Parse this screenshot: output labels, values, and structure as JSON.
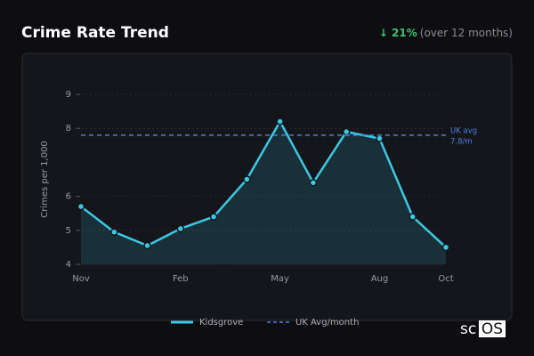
{
  "header": {
    "title": "Crime Rate Trend",
    "change": "↓ 21%",
    "change_note": "(over 12 months)"
  },
  "chart_data": {
    "type": "line",
    "y_label": "Crimes per 1,000",
    "categories": [
      "Nov",
      null,
      null,
      "Feb",
      null,
      null,
      "May",
      null,
      null,
      "Aug",
      null,
      "Oct"
    ],
    "series": [
      {
        "name": "Kidsgrove",
        "color": "#3cc8e4",
        "values": [
          5.7,
          4.95,
          4.55,
          5.05,
          5.4,
          6.5,
          8.2,
          6.4,
          7.9,
          7.7,
          5.4,
          4.5
        ]
      },
      {
        "name": "UK Avg/month",
        "color": "#4a7fe0",
        "dashed": true,
        "values": [
          7.8,
          7.8,
          7.8,
          7.8,
          7.8,
          7.8,
          7.8,
          7.8,
          7.8,
          7.8,
          7.8,
          7.8
        ]
      }
    ],
    "annotation": [
      "UK avg",
      "7.8/m"
    ],
    "ylim": [
      4,
      9
    ],
    "yticks": [
      4,
      5,
      6,
      8,
      9
    ],
    "grid": true,
    "legend": "bottom"
  },
  "watermark": [
    "sc",
    "OS"
  ]
}
